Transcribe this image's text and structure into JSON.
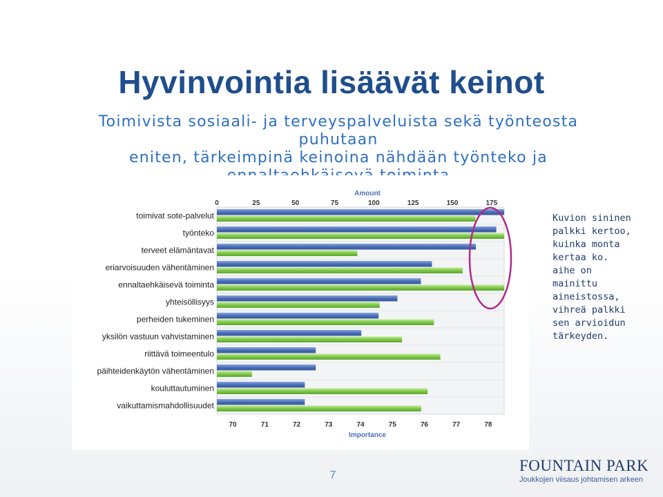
{
  "slide": {
    "title": "Hyvinvointia lisäävät keinot",
    "subtitle_lines": [
      "Toimivista sosiaali- ja terveyspalveluista sekä työnteosta puhutaan",
      "eniten, tärkeimpinä keinoina nähdään työnteko ja",
      "ennaltaehkäisevä toiminta"
    ],
    "note": "Kuvion sininen palkki kertoo, kuinka monta kertaa ko. aihe on mainittu aineistossa, vihreä palkki sen arvioidun tärkeyden.",
    "page_number": "7",
    "logo": {
      "name": "FOUNTAIN PARK",
      "tagline": "Joukkojen viisaus johtamisen arkeen"
    }
  },
  "colors": {
    "title": "#1f4e8c",
    "subtitle": "#2e6fc2",
    "amount_bar": "#4a6fb8",
    "importance_bar": "#7fc84a",
    "highlight_ellipse": "#b0298a"
  },
  "chart_data": {
    "type": "bar",
    "orientation": "horizontal",
    "categories": [
      "toimivat sote-palvelut",
      "työnteko",
      "terveet elämäntavat",
      "eriarvoisuuden vähentäminen",
      "ennaltaehkäisevä toiminta",
      "yhteisöllisyys",
      "perheiden tukeminen",
      "yksilön vastuun vahvistaminen",
      "riittävä toimeentulo",
      "päihteidenkäytön vähentäminen",
      "kouluttautuminen",
      "vaikuttamismahdollisuudet"
    ],
    "series": [
      {
        "name": "Amount",
        "axis": "top",
        "values": [
          183,
          178,
          165,
          137,
          130,
          115,
          103,
          92,
          63,
          63,
          56,
          56
        ]
      },
      {
        "name": "Importance",
        "axis": "bottom",
        "values": [
          77.6,
          78.5,
          73.9,
          77.2,
          78.5,
          74.6,
          76.3,
          75.3,
          76.5,
          70.6,
          76.1,
          75.9
        ]
      }
    ],
    "top_axis": {
      "label": "Amount",
      "ticks": [
        "0",
        "25",
        "50",
        "75",
        "100",
        "125",
        "150",
        "175"
      ],
      "range": [
        0,
        183
      ]
    },
    "bottom_axis": {
      "label": "Importance",
      "ticks": [
        "70",
        "71",
        "72",
        "73",
        "74",
        "75",
        "76",
        "77",
        "78"
      ],
      "range": [
        69.5,
        78.5
      ]
    },
    "highlight": "ellipse around the longest bars on the right"
  }
}
